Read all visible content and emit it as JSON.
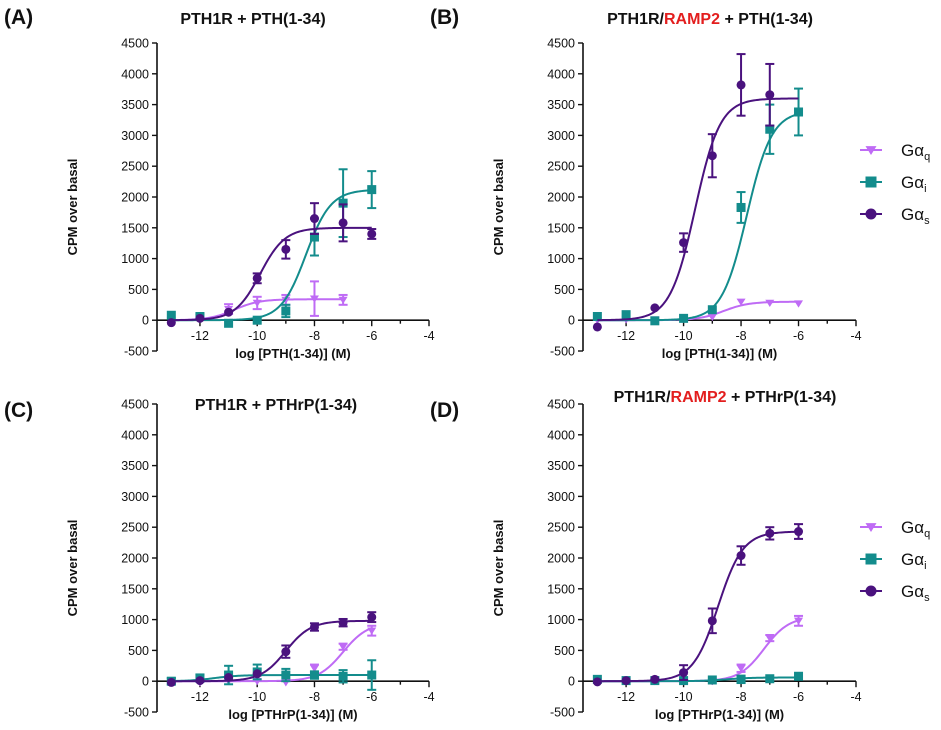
{
  "figure": {
    "colors": {
      "Gq": "#BF6BF5",
      "Gi": "#138C8C",
      "Gs": "#4A127E",
      "red": "#E31E1E"
    },
    "legend_entries": [
      {
        "id": "Gq",
        "base": "Gα",
        "sub": "q"
      },
      {
        "id": "Gi",
        "base": "Gα",
        "sub": "i"
      },
      {
        "id": "Gs",
        "base": "Gα",
        "sub": "s"
      }
    ]
  },
  "chart_data": [
    {
      "type": "scatter",
      "panel_label": "(A)",
      "title": "PTH1R + PTH(1-34)",
      "title_parts": [
        {
          "text": "PTH1R + PTH(1-34)",
          "red": false
        }
      ],
      "xlabel": "log [PTH(1-34)] (M)",
      "ylabel": "CPM over basal",
      "xlim": [
        -13.5,
        -4
      ],
      "ylim": [
        -500,
        4500
      ],
      "xticks": [
        -12,
        -10,
        -8,
        -6,
        -4
      ],
      "yticks": [
        -500,
        0,
        500,
        1000,
        1500,
        2000,
        2500,
        3000,
        3500,
        4000,
        4500
      ],
      "legend": false,
      "series": [
        {
          "name": "Gq",
          "x": [
            -13,
            -12,
            -11,
            -10,
            -9,
            -8,
            -7
          ],
          "y": [
            0,
            60,
            180,
            280,
            330,
            350,
            330
          ],
          "err": [
            0,
            40,
            80,
            100,
            80,
            280,
            80
          ],
          "fit": {
            "bottom": 0,
            "top": 340,
            "ec50": -10.8,
            "xmin": -13,
            "xmax": -7
          }
        },
        {
          "name": "Gi",
          "x": [
            -13,
            -12,
            -11,
            -10,
            -9,
            -8,
            -7,
            -6
          ],
          "y": [
            80,
            60,
            -50,
            0,
            150,
            1350,
            1900,
            2120
          ],
          "err": [
            0,
            0,
            0,
            0,
            100,
            300,
            550,
            300
          ],
          "fit": {
            "bottom": 0,
            "top": 2120,
            "ec50": -8.3,
            "xmin": -13,
            "xmax": -6
          }
        },
        {
          "name": "Gs",
          "x": [
            -13,
            -12,
            -11,
            -10,
            -9,
            -8,
            -7,
            -6
          ],
          "y": [
            -40,
            30,
            130,
            680,
            1150,
            1650,
            1580,
            1400
          ],
          "err": [
            0,
            0,
            0,
            80,
            150,
            250,
            300,
            80
          ],
          "fit": {
            "bottom": 0,
            "top": 1500,
            "ec50": -9.9,
            "xmin": -13,
            "xmax": -6
          }
        }
      ]
    },
    {
      "type": "scatter",
      "panel_label": "(B)",
      "title": "PTH1R/RAMP2 + PTH(1-34)",
      "title_parts": [
        {
          "text": "PTH1R/",
          "red": false
        },
        {
          "text": "RAMP2",
          "red": true
        },
        {
          "text": " + PTH(1-34)",
          "red": false
        }
      ],
      "xlabel": "log [PTH(1-34)] (M)",
      "ylabel": "CPM over basal",
      "xlim": [
        -13.5,
        -4
      ],
      "ylim": [
        -500,
        4500
      ],
      "xticks": [
        -12,
        -10,
        -8,
        -6,
        -4
      ],
      "yticks": [
        -500,
        0,
        500,
        1000,
        1500,
        2000,
        2500,
        3000,
        3500,
        4000,
        4500
      ],
      "legend": true,
      "series": [
        {
          "name": "Gq",
          "x": [
            -13,
            -12,
            -11,
            -10,
            -9,
            -8,
            -7,
            -6
          ],
          "y": [
            0,
            10,
            10,
            20,
            50,
            300,
            280,
            270
          ],
          "err": [
            0,
            0,
            0,
            0,
            0,
            0,
            0,
            0
          ],
          "fit": {
            "bottom": 0,
            "top": 300,
            "ec50": -8.6,
            "xmin": -13,
            "xmax": -6
          }
        },
        {
          "name": "Gi",
          "x": [
            -13,
            -12,
            -11,
            -10,
            -9,
            -8,
            -7,
            -6
          ],
          "y": [
            60,
            90,
            -10,
            30,
            170,
            1830,
            3100,
            3380
          ],
          "err": [
            0,
            0,
            0,
            0,
            0,
            250,
            400,
            380
          ],
          "fit": {
            "bottom": 0,
            "top": 3400,
            "ec50": -7.8,
            "xmin": -13,
            "xmax": -6
          }
        },
        {
          "name": "Gs",
          "x": [
            -13,
            -11,
            -10,
            -9,
            -8,
            -7
          ],
          "y": [
            -110,
            200,
            1260,
            2670,
            3820,
            3660
          ],
          "err": [
            0,
            0,
            150,
            350,
            500,
            500
          ],
          "fit": {
            "bottom": 0,
            "top": 3600,
            "ec50": -9.6,
            "xmin": -13,
            "xmax": -6
          }
        }
      ]
    },
    {
      "type": "scatter",
      "panel_label": "(C)",
      "title": "PTH1R + PTHrP(1-34)",
      "title_parts": [
        {
          "text": "PTH1R + PTHrP(1-34)",
          "red": false
        }
      ],
      "xlabel": "log [PTHrP(1-34)] (M)",
      "ylabel": "CPM over basal",
      "xlim": [
        -13.5,
        -4
      ],
      "ylim": [
        -500,
        4500
      ],
      "xticks": [
        -12,
        -10,
        -8,
        -6,
        -4
      ],
      "yticks": [
        -500,
        0,
        500,
        1000,
        1500,
        2000,
        2500,
        3000,
        3500,
        4000,
        4500
      ],
      "legend": false,
      "series": [
        {
          "name": "Gq",
          "x": [
            -13,
            -12,
            -11,
            -10,
            -9,
            -8,
            -7,
            -6
          ],
          "y": [
            0,
            -20,
            0,
            0,
            -20,
            210,
            560,
            820
          ],
          "err": [
            0,
            0,
            0,
            0,
            0,
            60,
            50,
            80
          ],
          "fit": {
            "bottom": 0,
            "top": 950,
            "ec50": -7.0,
            "xmin": -13,
            "xmax": -6
          }
        },
        {
          "name": "Gi",
          "x": [
            -13,
            -12,
            -11,
            -10,
            -9,
            -8,
            -7,
            -6
          ],
          "y": [
            0,
            50,
            100,
            150,
            100,
            100,
            80,
            100
          ],
          "err": [
            50,
            60,
            150,
            120,
            100,
            60,
            100,
            240
          ],
          "fit": {
            "bottom": 0,
            "top": 100,
            "ec50": -11.5,
            "xmin": -13,
            "xmax": -6
          }
        },
        {
          "name": "Gs",
          "x": [
            -13,
            -12,
            -11,
            -10,
            -9,
            -8,
            -7,
            -6
          ],
          "y": [
            -20,
            10,
            60,
            120,
            480,
            880,
            950,
            1040
          ],
          "err": [
            0,
            0,
            0,
            0,
            100,
            60,
            60,
            80
          ],
          "fit": {
            "bottom": 0,
            "top": 980,
            "ec50": -9.0,
            "xmin": -13,
            "xmax": -6
          }
        }
      ]
    },
    {
      "type": "scatter",
      "panel_label": "(D)",
      "title": "PTH1R/RAMP2 + PTHrP(1-34)",
      "title_parts": [
        {
          "text": "PTH1R/",
          "red": false
        },
        {
          "text": "RAMP2",
          "red": true
        },
        {
          "text": " + PTHrP(1-34)",
          "red": false
        }
      ],
      "xlabel": "log [PTHrP(1-34)] (M)",
      "ylabel": "CPM over basal",
      "xlim": [
        -13.5,
        -4
      ],
      "ylim": [
        -500,
        4500
      ],
      "xticks": [
        -12,
        -10,
        -8,
        -6,
        -4
      ],
      "yticks": [
        -500,
        0,
        500,
        1000,
        1500,
        2000,
        2500,
        3000,
        3500,
        4000,
        4500
      ],
      "legend": true,
      "series": [
        {
          "name": "Gq",
          "x": [
            -13,
            -12,
            -11,
            -10,
            -9,
            -8,
            -7,
            -6
          ],
          "y": [
            0,
            0,
            0,
            0,
            0,
            210,
            700,
            980
          ],
          "err": [
            0,
            0,
            0,
            0,
            0,
            60,
            50,
            80
          ],
          "fit": {
            "bottom": 0,
            "top": 1050,
            "ec50": -7.2,
            "xmin": -13,
            "xmax": -6
          }
        },
        {
          "name": "Gi",
          "x": [
            -13,
            -12,
            -11,
            -10,
            -9,
            -8,
            -7,
            -6
          ],
          "y": [
            30,
            10,
            10,
            10,
            20,
            30,
            40,
            80
          ],
          "err": [
            0,
            0,
            0,
            0,
            0,
            60,
            0,
            0
          ],
          "fit": {
            "bottom": 0,
            "top": 60,
            "ec50": -8.5,
            "xmin": -13,
            "xmax": -6
          }
        },
        {
          "name": "Gs",
          "x": [
            -13,
            -12,
            -11,
            -10,
            -9,
            -8,
            -7,
            -6
          ],
          "y": [
            -10,
            10,
            30,
            140,
            980,
            2040,
            2400,
            2430
          ],
          "err": [
            0,
            0,
            0,
            120,
            200,
            150,
            100,
            120
          ],
          "fit": {
            "bottom": 0,
            "top": 2430,
            "ec50": -8.8,
            "xmin": -13,
            "xmax": -6
          }
        }
      ]
    }
  ]
}
